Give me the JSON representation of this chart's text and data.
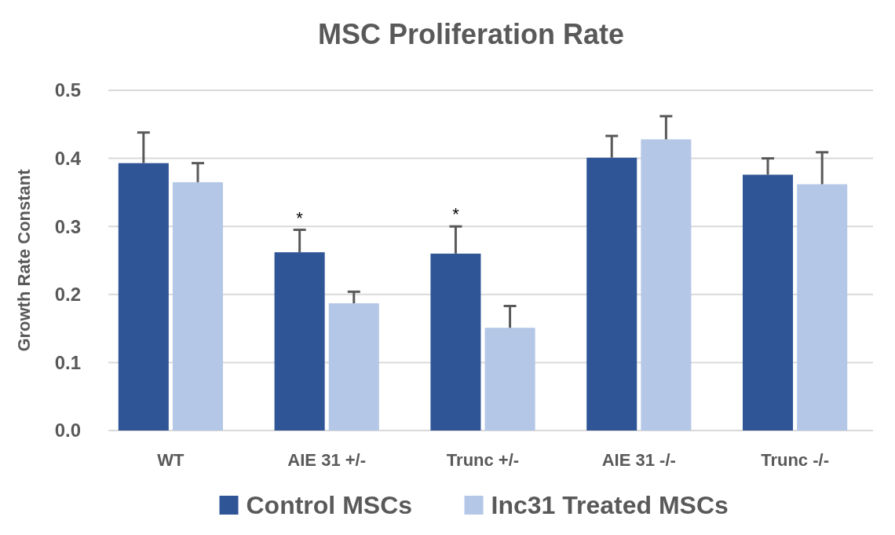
{
  "chart_data": {
    "type": "bar",
    "title": "MSC Proliferation Rate",
    "ylabel": "Growth Rate Constant",
    "categories": [
      "WT",
      "AIE 31 +/-",
      "Trunc +/-",
      "AIE 31 -/-",
      "Trunc -/-"
    ],
    "series": [
      {
        "name": "Control MSCs",
        "color": "#2f5597",
        "values": [
          0.393,
          0.262,
          0.26,
          0.401,
          0.376
        ],
        "errors": [
          [
            0.393,
            0.438
          ],
          [
            0.262,
            0.295
          ],
          [
            0.26,
            0.3
          ],
          [
            0.401,
            0.433
          ],
          [
            0.376,
            0.4
          ]
        ]
      },
      {
        "name": "Inc31 Treated MSCs",
        "color": "#b4c7e7",
        "values": [
          0.365,
          0.187,
          0.151,
          0.428,
          0.362
        ],
        "errors": [
          [
            0.365,
            0.393
          ],
          [
            0.187,
            0.204
          ],
          [
            0.151,
            0.183
          ],
          [
            0.428,
            0.462
          ],
          [
            0.362,
            0.409
          ]
        ]
      }
    ],
    "annotations": [
      "*",
      "*"
    ],
    "ylim": [
      0,
      0.5
    ],
    "yticks": [
      {
        "value": 0,
        "label": "0.0"
      },
      {
        "value": 0.1,
        "label": "0.1"
      },
      {
        "value": 0.2,
        "label": "0.2"
      },
      {
        "value": 0.3,
        "label": "0.3"
      },
      {
        "value": 0.4,
        "label": "0.4"
      },
      {
        "value": 0.5,
        "label": "0.5"
      }
    ],
    "grid": "y",
    "legend": "bottom"
  }
}
